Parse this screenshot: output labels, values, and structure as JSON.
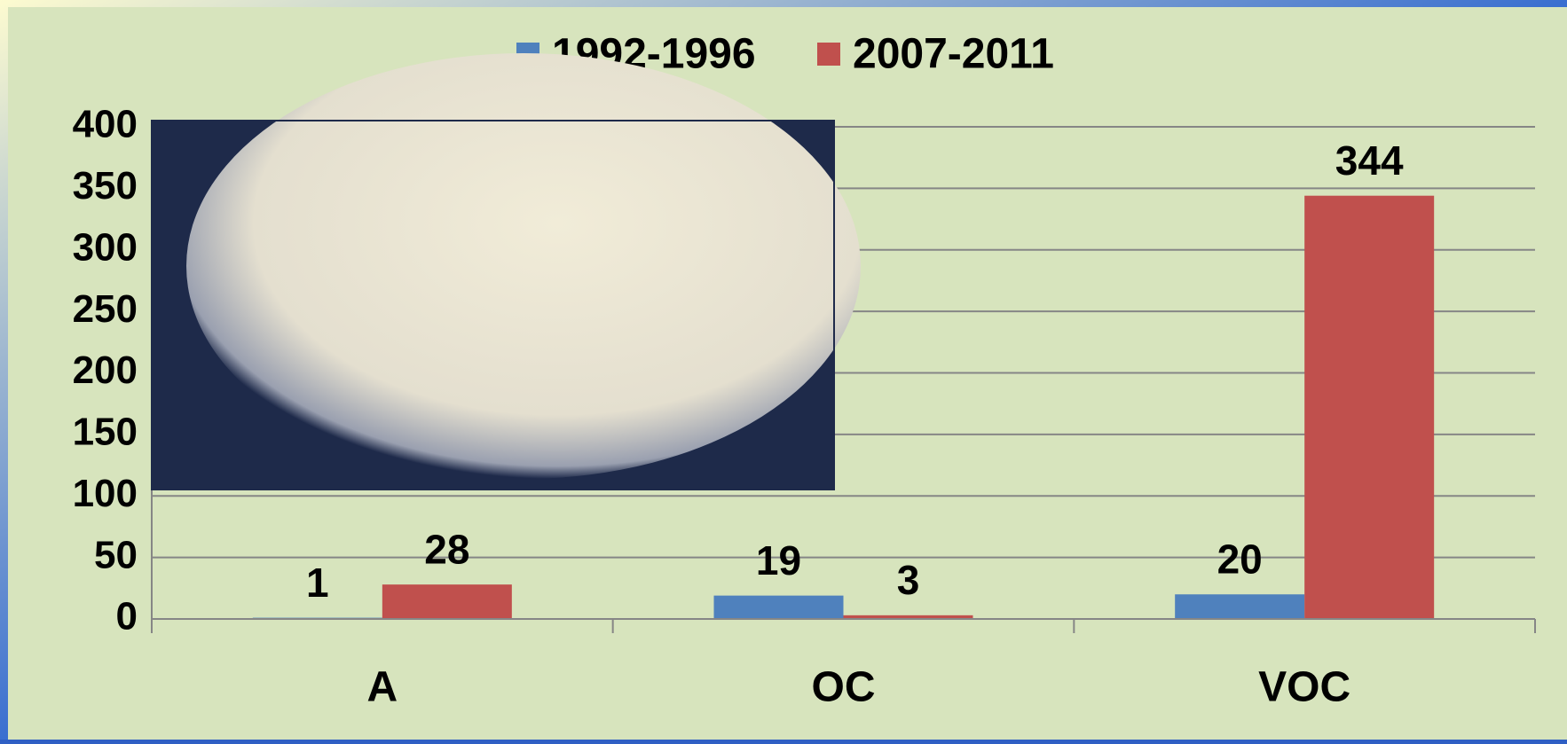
{
  "chart_data": {
    "type": "bar",
    "categories": [
      "A",
      "OC",
      "VOC"
    ],
    "series": [
      {
        "name": "1992-1996",
        "color": "#4f81bd",
        "values": [
          1,
          19,
          20
        ]
      },
      {
        "name": "2007-2011",
        "color": "#c0504d",
        "values": [
          28,
          3,
          344
        ]
      }
    ],
    "ylim": [
      0,
      400
    ],
    "yticks": [
      0,
      50,
      100,
      150,
      200,
      250,
      300,
      350,
      400
    ],
    "grid": true,
    "legend": "top"
  }
}
